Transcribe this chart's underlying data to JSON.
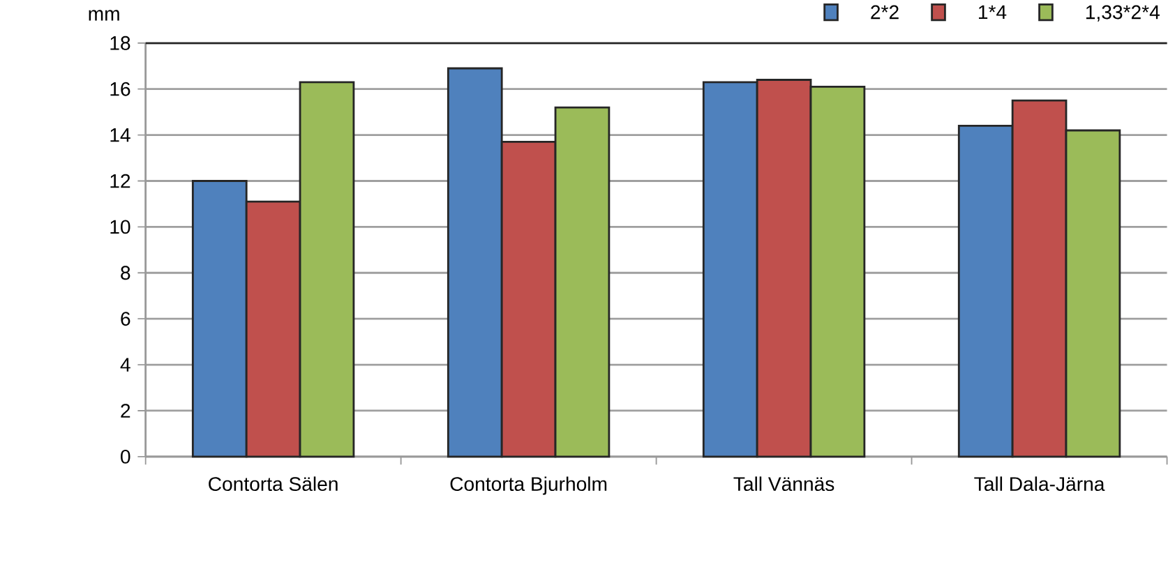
{
  "chart_data": {
    "type": "bar",
    "ylabel": "mm",
    "categories": [
      "Contorta Sälen",
      "Contorta Bjurholm",
      "Tall Vännäs",
      "Tall Dala-Järna"
    ],
    "series": [
      {
        "name": "2*2",
        "color": "#4f81bd",
        "values": [
          12.0,
          16.9,
          16.3,
          14.4
        ]
      },
      {
        "name": "1*4",
        "color": "#c0504d",
        "values": [
          11.1,
          13.7,
          16.4,
          15.5
        ]
      },
      {
        "name": "1,33*2*4",
        "color": "#9bbb59",
        "values": [
          16.3,
          15.2,
          16.1,
          14.2
        ]
      }
    ],
    "ylim": [
      0,
      18
    ],
    "yticks": [
      0,
      2,
      4,
      6,
      8,
      10,
      12,
      14,
      16,
      18
    ],
    "grid": "y",
    "legend": "top right"
  }
}
